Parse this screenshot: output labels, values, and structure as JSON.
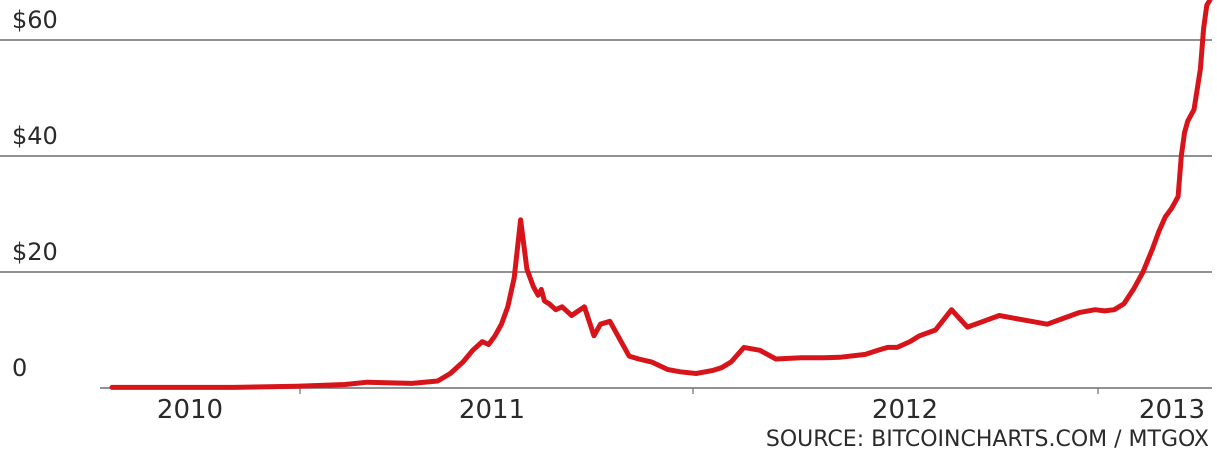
{
  "chart_data": {
    "type": "line",
    "title": "",
    "xlabel": "",
    "ylabel": "",
    "y_tick_labels": [
      {
        "value": 0,
        "label": "0"
      },
      {
        "value": 20,
        "label": "$20"
      },
      {
        "value": 40,
        "label": "$40"
      },
      {
        "value": 60,
        "label": "$60"
      }
    ],
    "x_tick_labels": [
      {
        "value": 2010,
        "label": "2010"
      },
      {
        "value": 2011,
        "label": "2011"
      },
      {
        "value": 2012,
        "label": "2012"
      },
      {
        "value": 2013,
        "label": "2013"
      }
    ],
    "ylim": [
      0,
      67
    ],
    "xlim": [
      2009.63,
      2013.3
    ],
    "grid": "horizontal",
    "series": [
      {
        "color": "#d7141a",
        "x": [
          2009.72,
          2009.9,
          2010.1,
          2010.3,
          2010.45,
          2010.52,
          2010.58,
          2010.66,
          2010.74,
          2010.78,
          2010.82,
          2010.85,
          2010.88,
          2010.9,
          2010.92,
          2010.94,
          2010.96,
          2010.98,
          2011.0,
          2011.02,
          2011.04,
          2011.055,
          2011.065,
          2011.075,
          2011.09,
          2011.11,
          2011.13,
          2011.16,
          2011.2,
          2011.23,
          2011.25,
          2011.28,
          2011.31,
          2011.34,
          2011.37,
          2011.41,
          2011.46,
          2011.5,
          2011.55,
          2011.6,
          2011.63,
          2011.66,
          2011.7,
          2011.75,
          2011.8,
          2011.88,
          2011.95,
          2012.0,
          2012.08,
          2012.12,
          2012.15,
          2012.18,
          2012.2,
          2012.22,
          2012.25,
          2012.3,
          2012.35,
          2012.4,
          2012.45,
          2012.5,
          2012.55,
          2012.6,
          2012.65,
          2012.7,
          2012.75,
          2012.8,
          2012.83,
          2012.86,
          2012.89,
          2012.92,
          2012.95,
          2012.98,
          2013.0,
          2013.02,
          2013.04,
          2013.06,
          2013.07,
          2013.08,
          2013.09,
          2013.1,
          2013.11,
          2013.13,
          2013.14,
          2013.15,
          2013.16
        ],
        "values": [
          0.1,
          0.1,
          0.1,
          0.3,
          0.6,
          1.0,
          0.9,
          0.8,
          1.2,
          2.5,
          4.5,
          6.5,
          8.0,
          7.5,
          9.0,
          11.0,
          14.0,
          19.0,
          29.0,
          20.5,
          17.5,
          16.0,
          17.0,
          15.0,
          14.5,
          13.5,
          14.0,
          12.5,
          14.0,
          9.0,
          11.0,
          11.5,
          8.5,
          5.5,
          5.0,
          4.5,
          3.2,
          2.8,
          2.5,
          3.0,
          3.5,
          4.5,
          7.0,
          6.5,
          5.0,
          5.2,
          5.2,
          5.3,
          5.8,
          6.5,
          7.0,
          7.0,
          7.5,
          8.0,
          9.0,
          10.0,
          13.5,
          10.5,
          11.5,
          12.5,
          12.0,
          11.5,
          11.0,
          12.0,
          13.0,
          13.5,
          13.3,
          13.5,
          14.5,
          17.0,
          20.0,
          24.0,
          27.0,
          29.5,
          31.0,
          33.0,
          40.0,
          44.0,
          46.0,
          47.0,
          48.0,
          55.0,
          62.0,
          66.0,
          67.0
        ]
      }
    ]
  },
  "source_text": "SOURCE: BITCOINCHARTS.COM / MTGOX"
}
